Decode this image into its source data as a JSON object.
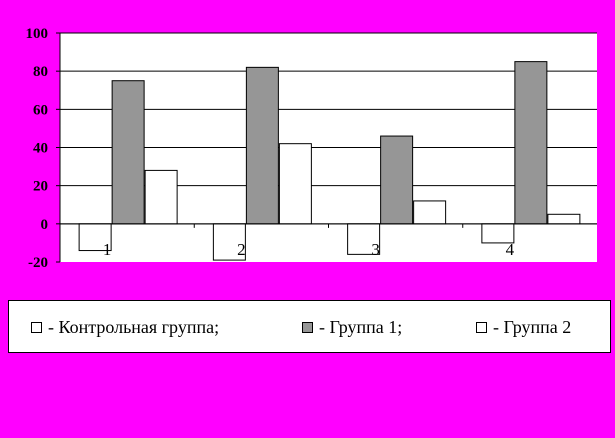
{
  "chart_data": {
    "type": "bar",
    "categories": [
      "1",
      "2",
      "3",
      "4"
    ],
    "series": [
      {
        "name": "Контрольная группа",
        "values": [
          -14,
          -19,
          -16,
          -10
        ],
        "color": "#ffffff"
      },
      {
        "name": "Группа 1",
        "values": [
          75,
          82,
          46,
          85
        ],
        "color": "#969696"
      },
      {
        "name": "Группа 2",
        "values": [
          28,
          42,
          12,
          5
        ],
        "color": "#ffffff"
      }
    ],
    "yticks": [
      "100",
      "80",
      "60",
      "40",
      "20",
      "0",
      "-20"
    ],
    "ylim": [
      -20,
      100
    ],
    "grid": true,
    "plot_background": "#ffffff",
    "legend_position": "bottom",
    "legend": [
      {
        "label": "- Контрольная группа;",
        "color": "#ffffff"
      },
      {
        "label": "- Группа 1;",
        "color": "#969696"
      },
      {
        "label": "- Группа 2",
        "color": "#ffffff"
      }
    ]
  }
}
